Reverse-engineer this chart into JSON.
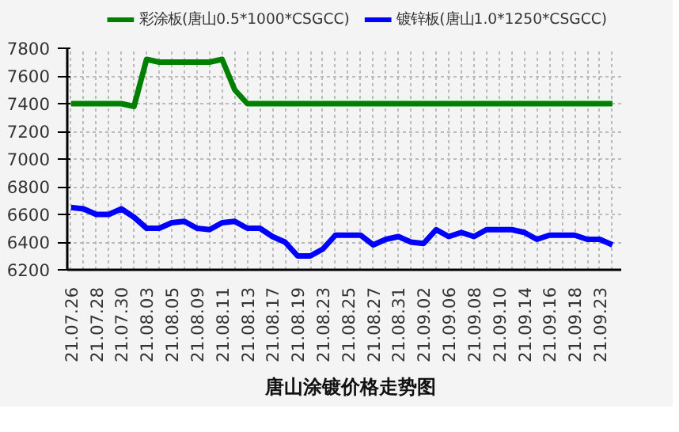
{
  "chart_data": {
    "type": "line",
    "title": "唐山涂镀价格走势图",
    "categories": [
      "21.07.26",
      null,
      "21.07.28",
      null,
      "21.07.30",
      null,
      "21.08.03",
      null,
      "21.08.05",
      null,
      "21.08.09",
      null,
      "21.08.11",
      null,
      "21.08.13",
      null,
      "21.08.17",
      null,
      "21.08.19",
      null,
      "21.08.23",
      null,
      "21.08.25",
      null,
      "21.08.27",
      null,
      "21.08.31",
      null,
      "21.09.02",
      null,
      "21.09.06",
      null,
      "21.09.08",
      null,
      "21.09.10",
      null,
      "21.09.14",
      null,
      "21.09.16",
      null,
      "21.09.18",
      null,
      "21.09.23",
      null
    ],
    "series": [
      {
        "name": "彩涂板(唐山0.5*1000*CSGCC)",
        "color": "#008000",
        "values": [
          7400,
          7400,
          7400,
          7400,
          7400,
          7380,
          7720,
          7700,
          7700,
          7700,
          7700,
          7700,
          7720,
          7500,
          7400,
          7400,
          7400,
          7400,
          7400,
          7400,
          7400,
          7400,
          7400,
          7400,
          7400,
          7400,
          7400,
          7400,
          7400,
          7400,
          7400,
          7400,
          7400,
          7400,
          7400,
          7400,
          7400,
          7400,
          7400,
          7400,
          7400,
          7400,
          7400,
          7400
        ]
      },
      {
        "name": "镀锌板(唐山1.0*1250*CSGCC)",
        "color": "#0000ff",
        "values": [
          6650,
          6640,
          6600,
          6600,
          6640,
          6580,
          6500,
          6500,
          6540,
          6550,
          6500,
          6490,
          6540,
          6550,
          6500,
          6500,
          6440,
          6400,
          6300,
          6300,
          6350,
          6450,
          6450,
          6450,
          6380,
          6420,
          6440,
          6400,
          6390,
          6490,
          6440,
          6470,
          6440,
          6490,
          6490,
          6490,
          6470,
          6420,
          6450,
          6450,
          6450,
          6420,
          6420,
          6380
        ]
      }
    ],
    "ylim": [
      6200,
      7800
    ],
    "yticks": [
      6200,
      6400,
      6600,
      6800,
      7000,
      7200,
      7400,
      7600,
      7800
    ],
    "grid": true,
    "legend": "top",
    "line_style": "solid",
    "marker": "none"
  }
}
